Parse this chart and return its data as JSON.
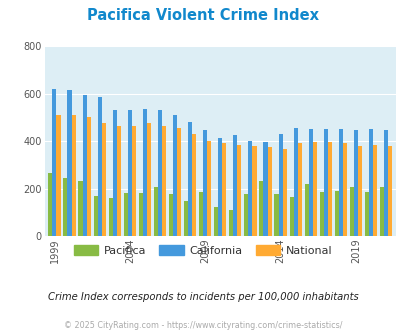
{
  "title": "Pacifica Violent Crime Index",
  "subtitle": "Crime Index corresponds to incidents per 100,000 inhabitants",
  "footer": "© 2025 CityRating.com - https://www.cityrating.com/crime-statistics/",
  "years": [
    1999,
    2000,
    2001,
    2002,
    2003,
    2004,
    2005,
    2006,
    2007,
    2008,
    2009,
    2010,
    2011,
    2012,
    2013,
    2014,
    2015,
    2016,
    2017,
    2018,
    2019,
    2020,
    2021
  ],
  "pacifica": [
    265,
    245,
    230,
    170,
    160,
    183,
    183,
    205,
    175,
    148,
    185,
    120,
    110,
    175,
    230,
    175,
    165,
    220,
    185,
    190,
    205,
    185,
    205
  ],
  "california": [
    620,
    615,
    595,
    585,
    530,
    530,
    535,
    530,
    510,
    480,
    445,
    415,
    425,
    400,
    395,
    430,
    455,
    450,
    450,
    450,
    445,
    450,
    445
  ],
  "national": [
    510,
    510,
    500,
    475,
    465,
    465,
    475,
    465,
    455,
    430,
    400,
    390,
    385,
    380,
    375,
    365,
    390,
    395,
    395,
    390,
    380,
    385,
    380
  ],
  "bar_width": 0.27,
  "ylim": [
    0,
    800
  ],
  "yticks": [
    0,
    200,
    400,
    600,
    800
  ],
  "xtick_years": [
    1999,
    2004,
    2009,
    2014,
    2019
  ],
  "color_pacifica": "#88bb44",
  "color_california": "#4499dd",
  "color_national": "#ffaa33",
  "bg_color": "#ddeef5",
  "title_color": "#1188cc",
  "subtitle_color": "#222222",
  "footer_color": "#aaaaaa",
  "grid_color": "#ffffff",
  "legend_labels": [
    "Pacifica",
    "California",
    "National"
  ]
}
